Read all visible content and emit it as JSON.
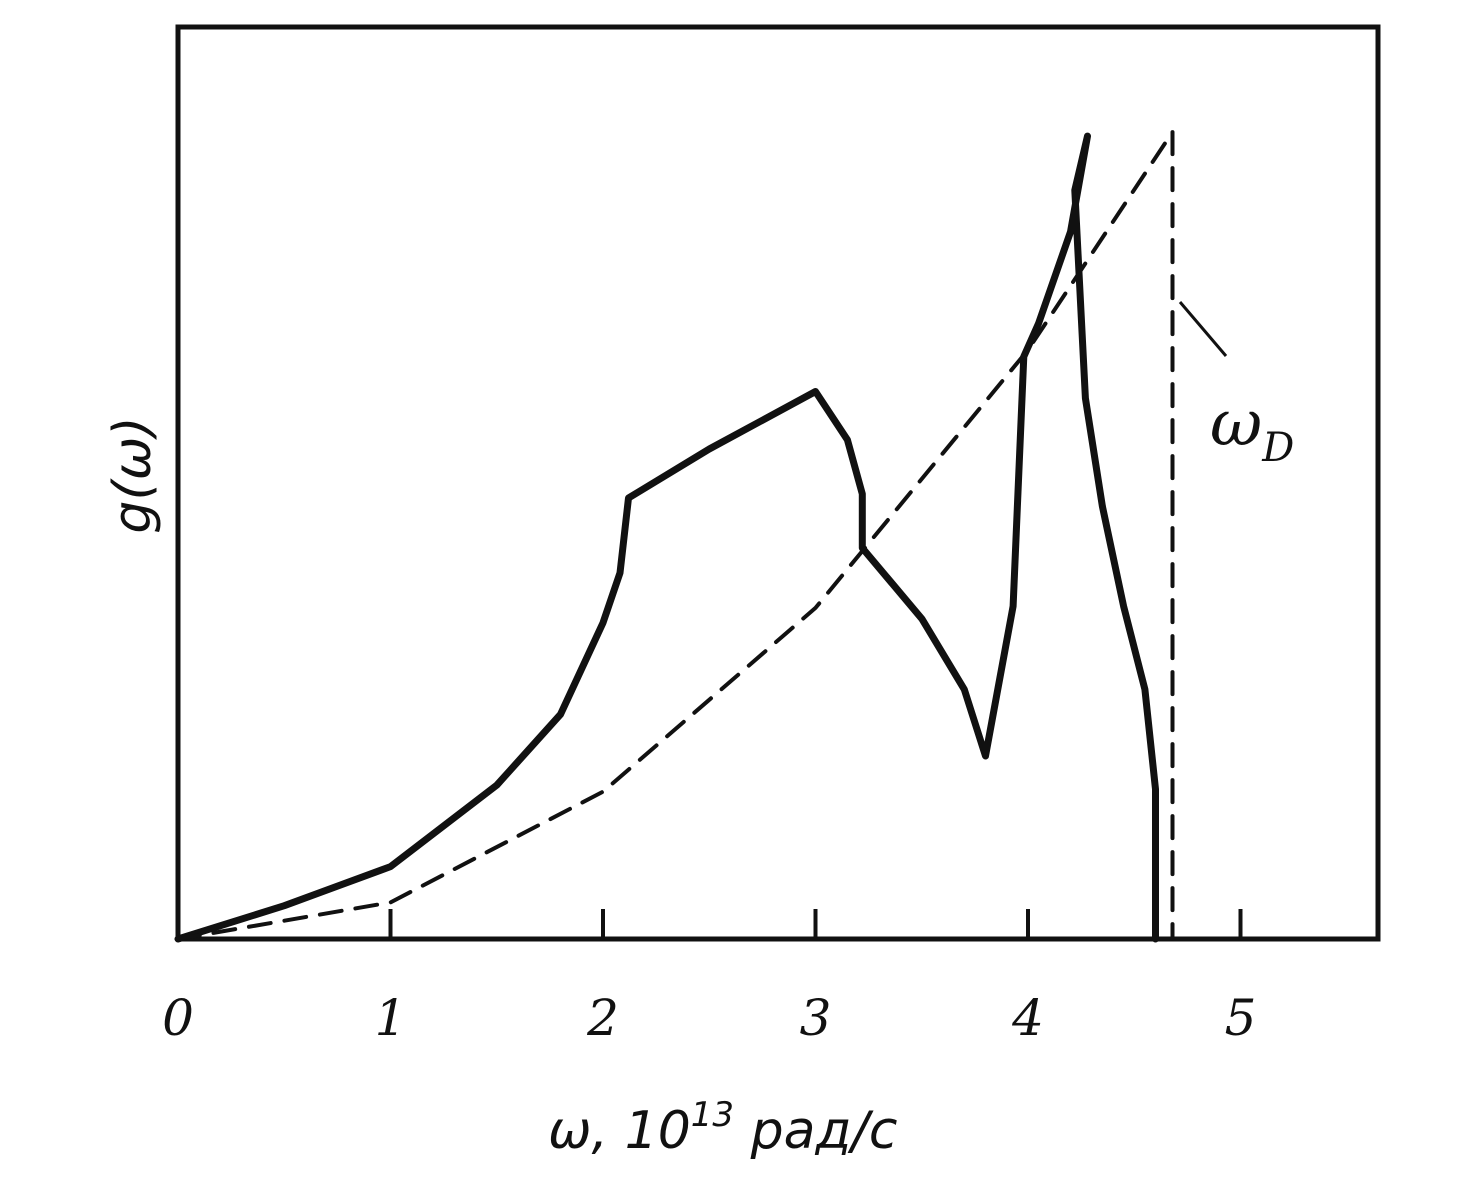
{
  "chart_data": {
    "type": "line",
    "xlabel": "ω, 10",
    "xlabel_exponent": "13",
    "xlabel_unit": " рад/с",
    "ylabel": "g(ω)",
    "xlim": [
      0,
      5.6
    ],
    "ylim": [
      0,
      1.0
    ],
    "x_ticks": [
      0,
      1,
      2,
      3,
      4,
      5
    ],
    "x_tick_labels": [
      "0",
      "1",
      "2",
      "3",
      "4",
      "5"
    ],
    "grid": false,
    "annotation": {
      "text": "ω",
      "subscript": "D",
      "target_x": 4.68
    },
    "series": [
      {
        "style": "solid",
        "color": "#111111",
        "points": [
          [
            0,
            0
          ],
          [
            0.5,
            0.04
          ],
          [
            1.0,
            0.087
          ],
          [
            1.5,
            0.185
          ],
          [
            1.8,
            0.27
          ],
          [
            2.0,
            0.38
          ],
          [
            2.08,
            0.44
          ],
          [
            2.12,
            0.53
          ],
          [
            2.5,
            0.589
          ],
          [
            3.0,
            0.658
          ],
          [
            3.15,
            0.6
          ],
          [
            3.22,
            0.535
          ],
          [
            3.22,
            0.47
          ],
          [
            3.5,
            0.385
          ],
          [
            3.7,
            0.3
          ],
          [
            3.8,
            0.22
          ],
          [
            3.93,
            0.4
          ],
          [
            3.98,
            0.7
          ],
          [
            4.05,
            0.74
          ],
          [
            4.2,
            0.85
          ],
          [
            4.28,
            0.965
          ],
          [
            4.22,
            0.9
          ],
          [
            4.27,
            0.65
          ],
          [
            4.35,
            0.52
          ],
          [
            4.45,
            0.4
          ],
          [
            4.55,
            0.3
          ],
          [
            4.6,
            0.18
          ],
          [
            4.6,
            0
          ]
        ]
      },
      {
        "style": "dashed",
        "color": "#111111",
        "points": [
          [
            0,
            0
          ],
          [
            1.0,
            0.044
          ],
          [
            2.0,
            0.177
          ],
          [
            3.0,
            0.398
          ],
          [
            4.0,
            0.708
          ],
          [
            4.68,
            0.97
          ],
          [
            4.68,
            0
          ]
        ]
      }
    ]
  }
}
